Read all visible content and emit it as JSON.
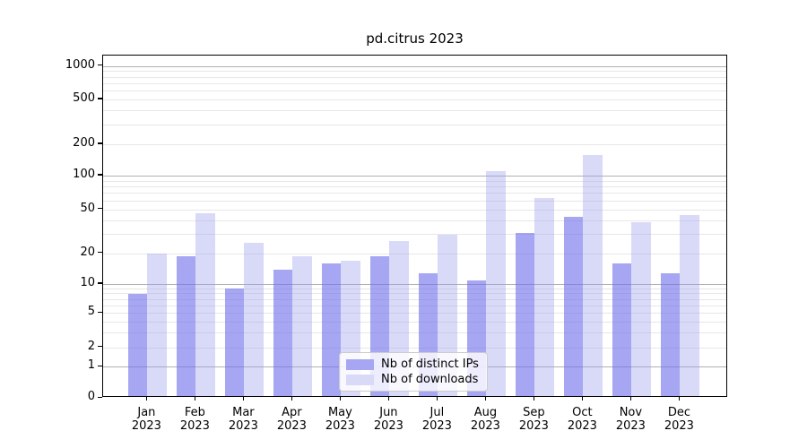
{
  "chart_data": {
    "type": "bar",
    "title": "pd.citrus 2023",
    "categories": [
      "Jan 2023",
      "Feb 2023",
      "Mar 2023",
      "Apr 2023",
      "May 2023",
      "Jun 2023",
      "Jul 2023",
      "Aug 2023",
      "Sep 2023",
      "Oct 2023",
      "Nov 2023",
      "Dec 2023"
    ],
    "month_labels": [
      "Jan",
      "Feb",
      "Mar",
      "Apr",
      "May",
      "Jun",
      "Jul",
      "Aug",
      "Sep",
      "Oct",
      "Nov",
      "Dec"
    ],
    "year_label": "2023",
    "series": [
      {
        "name": "Nb of distinct IPs",
        "color": "#a6a6f2",
        "values": [
          8,
          19,
          9,
          14,
          16,
          19,
          13,
          11,
          31,
          43,
          16,
          13
        ]
      },
      {
        "name": "Nb of downloads",
        "color": "#d9d9f8",
        "values": [
          20,
          47,
          25,
          19,
          17,
          26,
          30,
          112,
          64,
          160,
          39,
          45
        ]
      }
    ],
    "yscale": "symlog",
    "y_ticks": [
      0,
      1,
      2,
      5,
      10,
      20,
      50,
      100,
      200,
      500,
      1000
    ],
    "ylim": [
      0,
      1400
    ],
    "grid": true,
    "legend_position": "lower center"
  },
  "colors": {
    "ips_bar_base": "#6f6fea",
    "ips_bar_alpha": 0.62,
    "downloads_bar_base": "#9b9bed",
    "downloads_bar_alpha": 0.38,
    "grid_major": "#b0b0b0",
    "grid_minor": "#e7e7e7",
    "axis": "#000000",
    "text": "#000000"
  }
}
